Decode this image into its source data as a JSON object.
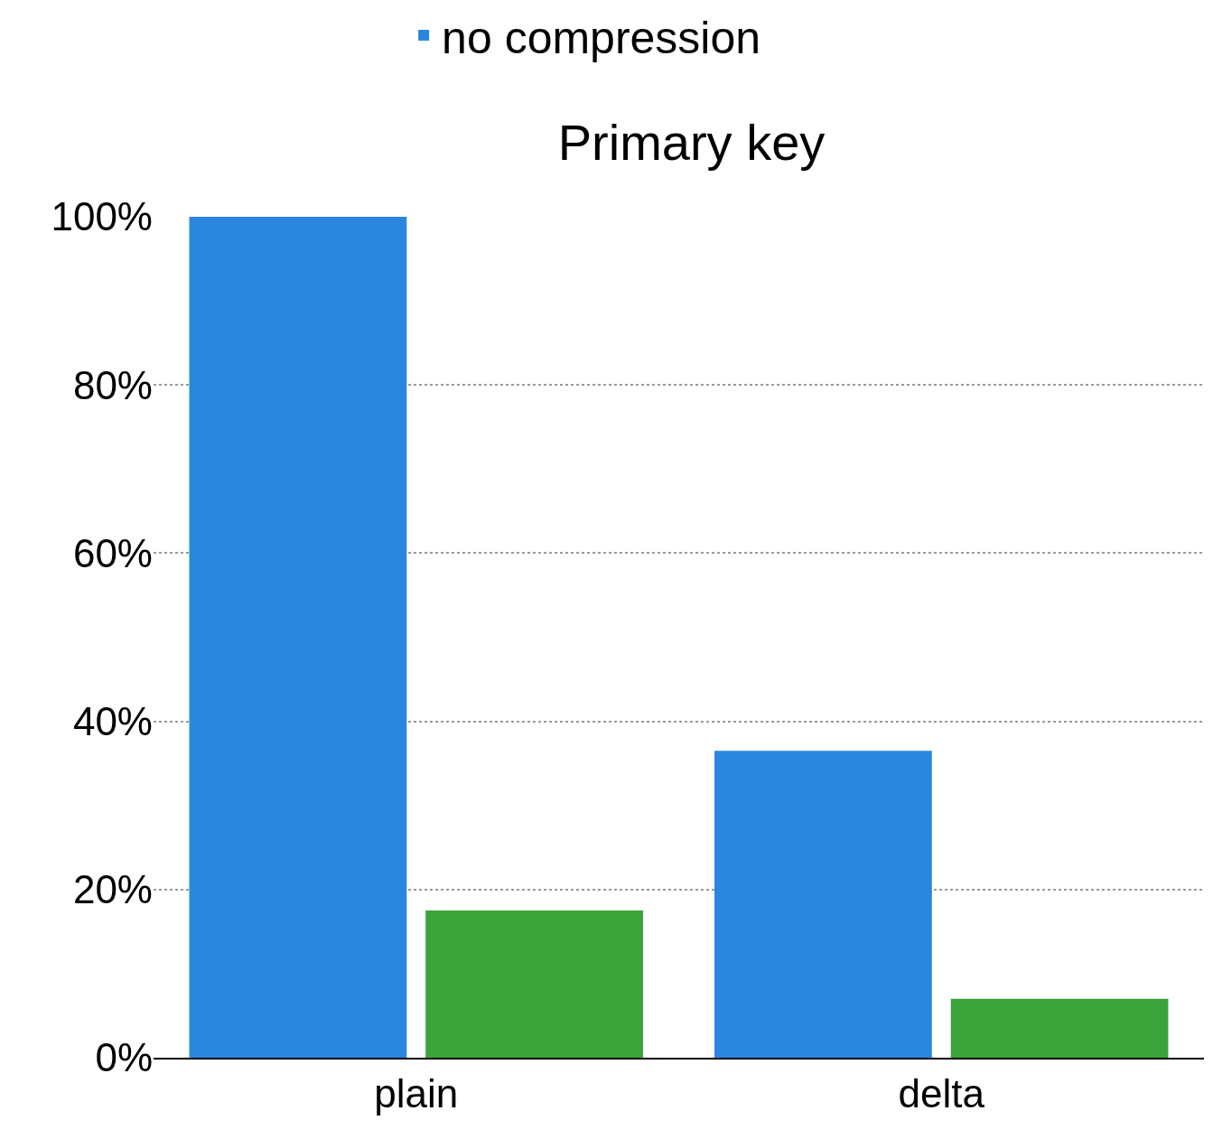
{
  "chart_data": {
    "type": "bar",
    "title": "Primary key",
    "categories": [
      "plain",
      "delta"
    ],
    "series": [
      {
        "name": "no compression",
        "color": "#2a86de",
        "values": [
          100,
          36.5
        ]
      },
      {
        "color": "#3aa33a",
        "values": [
          17.5,
          7.0
        ]
      }
    ],
    "ylim": [
      0,
      100
    ],
    "yticks": [
      {
        "value": 0,
        "label": "0%"
      },
      {
        "value": 20,
        "label": "20%"
      },
      {
        "value": 40,
        "label": "40%"
      },
      {
        "value": 60,
        "label": "60%"
      },
      {
        "value": 80,
        "label": "80%"
      },
      {
        "value": 100,
        "label": "100%"
      }
    ],
    "grid": "y",
    "legend": "top"
  }
}
